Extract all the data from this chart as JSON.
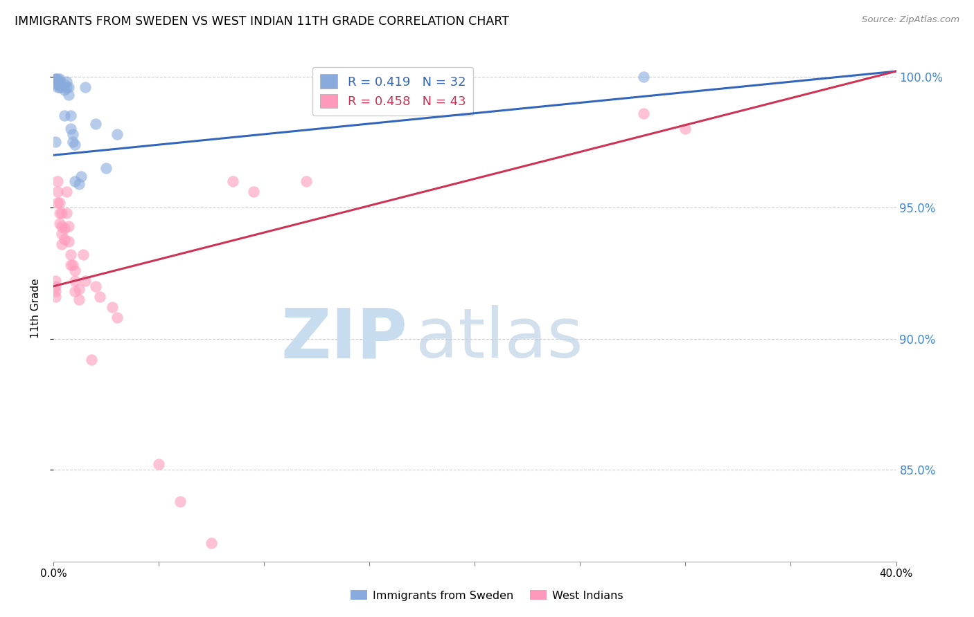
{
  "title": "IMMIGRANTS FROM SWEDEN VS WEST INDIAN 11TH GRADE CORRELATION CHART",
  "source": "Source: ZipAtlas.com",
  "ylabel": "11th Grade",
  "yaxis_labels": [
    "100.0%",
    "95.0%",
    "90.0%",
    "85.0%"
  ],
  "yaxis_values": [
    1.0,
    0.95,
    0.9,
    0.85
  ],
  "xlim": [
    0.0,
    0.4
  ],
  "ylim": [
    0.815,
    1.008
  ],
  "legend_blue_r": "R = 0.419",
  "legend_blue_n": "N = 32",
  "legend_pink_r": "R = 0.458",
  "legend_pink_n": "N = 43",
  "legend_blue_label": "Immigrants from Sweden",
  "legend_pink_label": "West Indians",
  "blue_color": "#88AADD",
  "pink_color": "#FF99BB",
  "blue_line_color": "#3366BB",
  "pink_line_color": "#CC3355",
  "blue_line_x0": 0.0,
  "blue_line_y0": 0.97,
  "blue_line_x1": 0.4,
  "blue_line_y1": 1.002,
  "pink_line_x0": 0.0,
  "pink_line_y0": 0.92,
  "pink_line_x1": 0.4,
  "pink_line_y1": 1.002,
  "blue_x": [
    0.001,
    0.001,
    0.001,
    0.002,
    0.002,
    0.002,
    0.002,
    0.003,
    0.003,
    0.003,
    0.004,
    0.005,
    0.005,
    0.005,
    0.006,
    0.006,
    0.007,
    0.007,
    0.008,
    0.008,
    0.009,
    0.009,
    0.01,
    0.01,
    0.012,
    0.013,
    0.015,
    0.02,
    0.025,
    0.03,
    0.28,
    0.001
  ],
  "blue_y": [
    0.999,
    0.999,
    0.997,
    0.999,
    0.998,
    0.997,
    0.996,
    0.999,
    0.998,
    0.996,
    0.996,
    0.997,
    0.995,
    0.985,
    0.998,
    0.996,
    0.996,
    0.993,
    0.985,
    0.98,
    0.978,
    0.975,
    0.974,
    0.96,
    0.959,
    0.962,
    0.996,
    0.982,
    0.965,
    0.978,
    1.0,
    0.975
  ],
  "pink_x": [
    0.001,
    0.001,
    0.001,
    0.001,
    0.002,
    0.002,
    0.002,
    0.003,
    0.003,
    0.003,
    0.004,
    0.004,
    0.004,
    0.004,
    0.005,
    0.005,
    0.006,
    0.006,
    0.007,
    0.007,
    0.008,
    0.008,
    0.009,
    0.01,
    0.01,
    0.01,
    0.012,
    0.012,
    0.014,
    0.015,
    0.018,
    0.02,
    0.022,
    0.028,
    0.03,
    0.05,
    0.06,
    0.075,
    0.085,
    0.095,
    0.12,
    0.28,
    0.3
  ],
  "pink_y": [
    0.922,
    0.92,
    0.918,
    0.916,
    0.96,
    0.956,
    0.952,
    0.952,
    0.948,
    0.944,
    0.948,
    0.943,
    0.94,
    0.936,
    0.942,
    0.938,
    0.956,
    0.948,
    0.943,
    0.937,
    0.932,
    0.928,
    0.928,
    0.926,
    0.922,
    0.918,
    0.919,
    0.915,
    0.932,
    0.922,
    0.892,
    0.92,
    0.916,
    0.912,
    0.908,
    0.852,
    0.838,
    0.822,
    0.96,
    0.956,
    0.96,
    0.986,
    0.98
  ]
}
